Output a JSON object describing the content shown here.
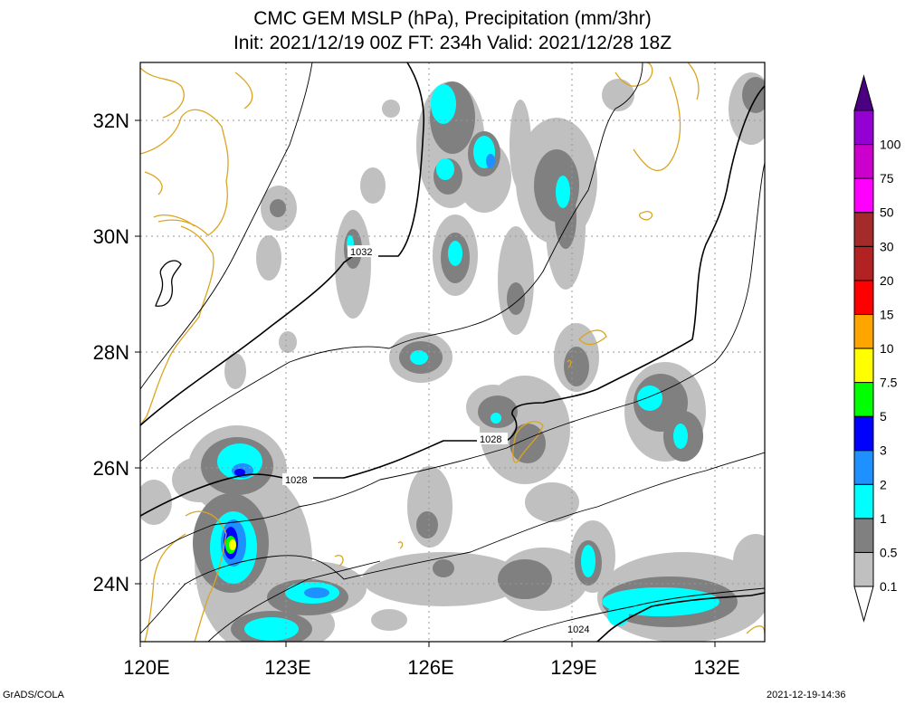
{
  "title_line1": "CMC GEM MSLP (hPa), Precipitation (mm/3hr)",
  "title_line2": "Init: 2021/12/19 00Z  FT: 234h  Valid: 2021/12/28 18Z",
  "map": {
    "lon_ticks": [
      "120E",
      "123E",
      "126E",
      "129E",
      "132E"
    ],
    "lat_ticks": [
      "32N",
      "30N",
      "28N",
      "26N",
      "24N"
    ],
    "isobar_labels": [
      "1032",
      "1028",
      "1028",
      "1024"
    ],
    "coast_color": "#daa520",
    "isobar_color": "#000000"
  },
  "legend": {
    "levels": [
      "0.1",
      "0.5",
      "1",
      "2",
      "3",
      "5",
      "7.5",
      "10",
      "15",
      "20",
      "30",
      "50",
      "75",
      "100"
    ],
    "colors": [
      "#ffffff",
      "#c0c0c0",
      "#808080",
      "#00ffff",
      "#1e90ff",
      "#0000ff",
      "#00ff00",
      "#ffff00",
      "#ffa500",
      "#ff0000",
      "#b22222",
      "#a52a2a",
      "#ff00ff",
      "#cc00cc",
      "#9400d3",
      "#4b0082"
    ]
  },
  "footer_left": "GrADS/COLA",
  "footer_right": "2021-12-19-14:36"
}
